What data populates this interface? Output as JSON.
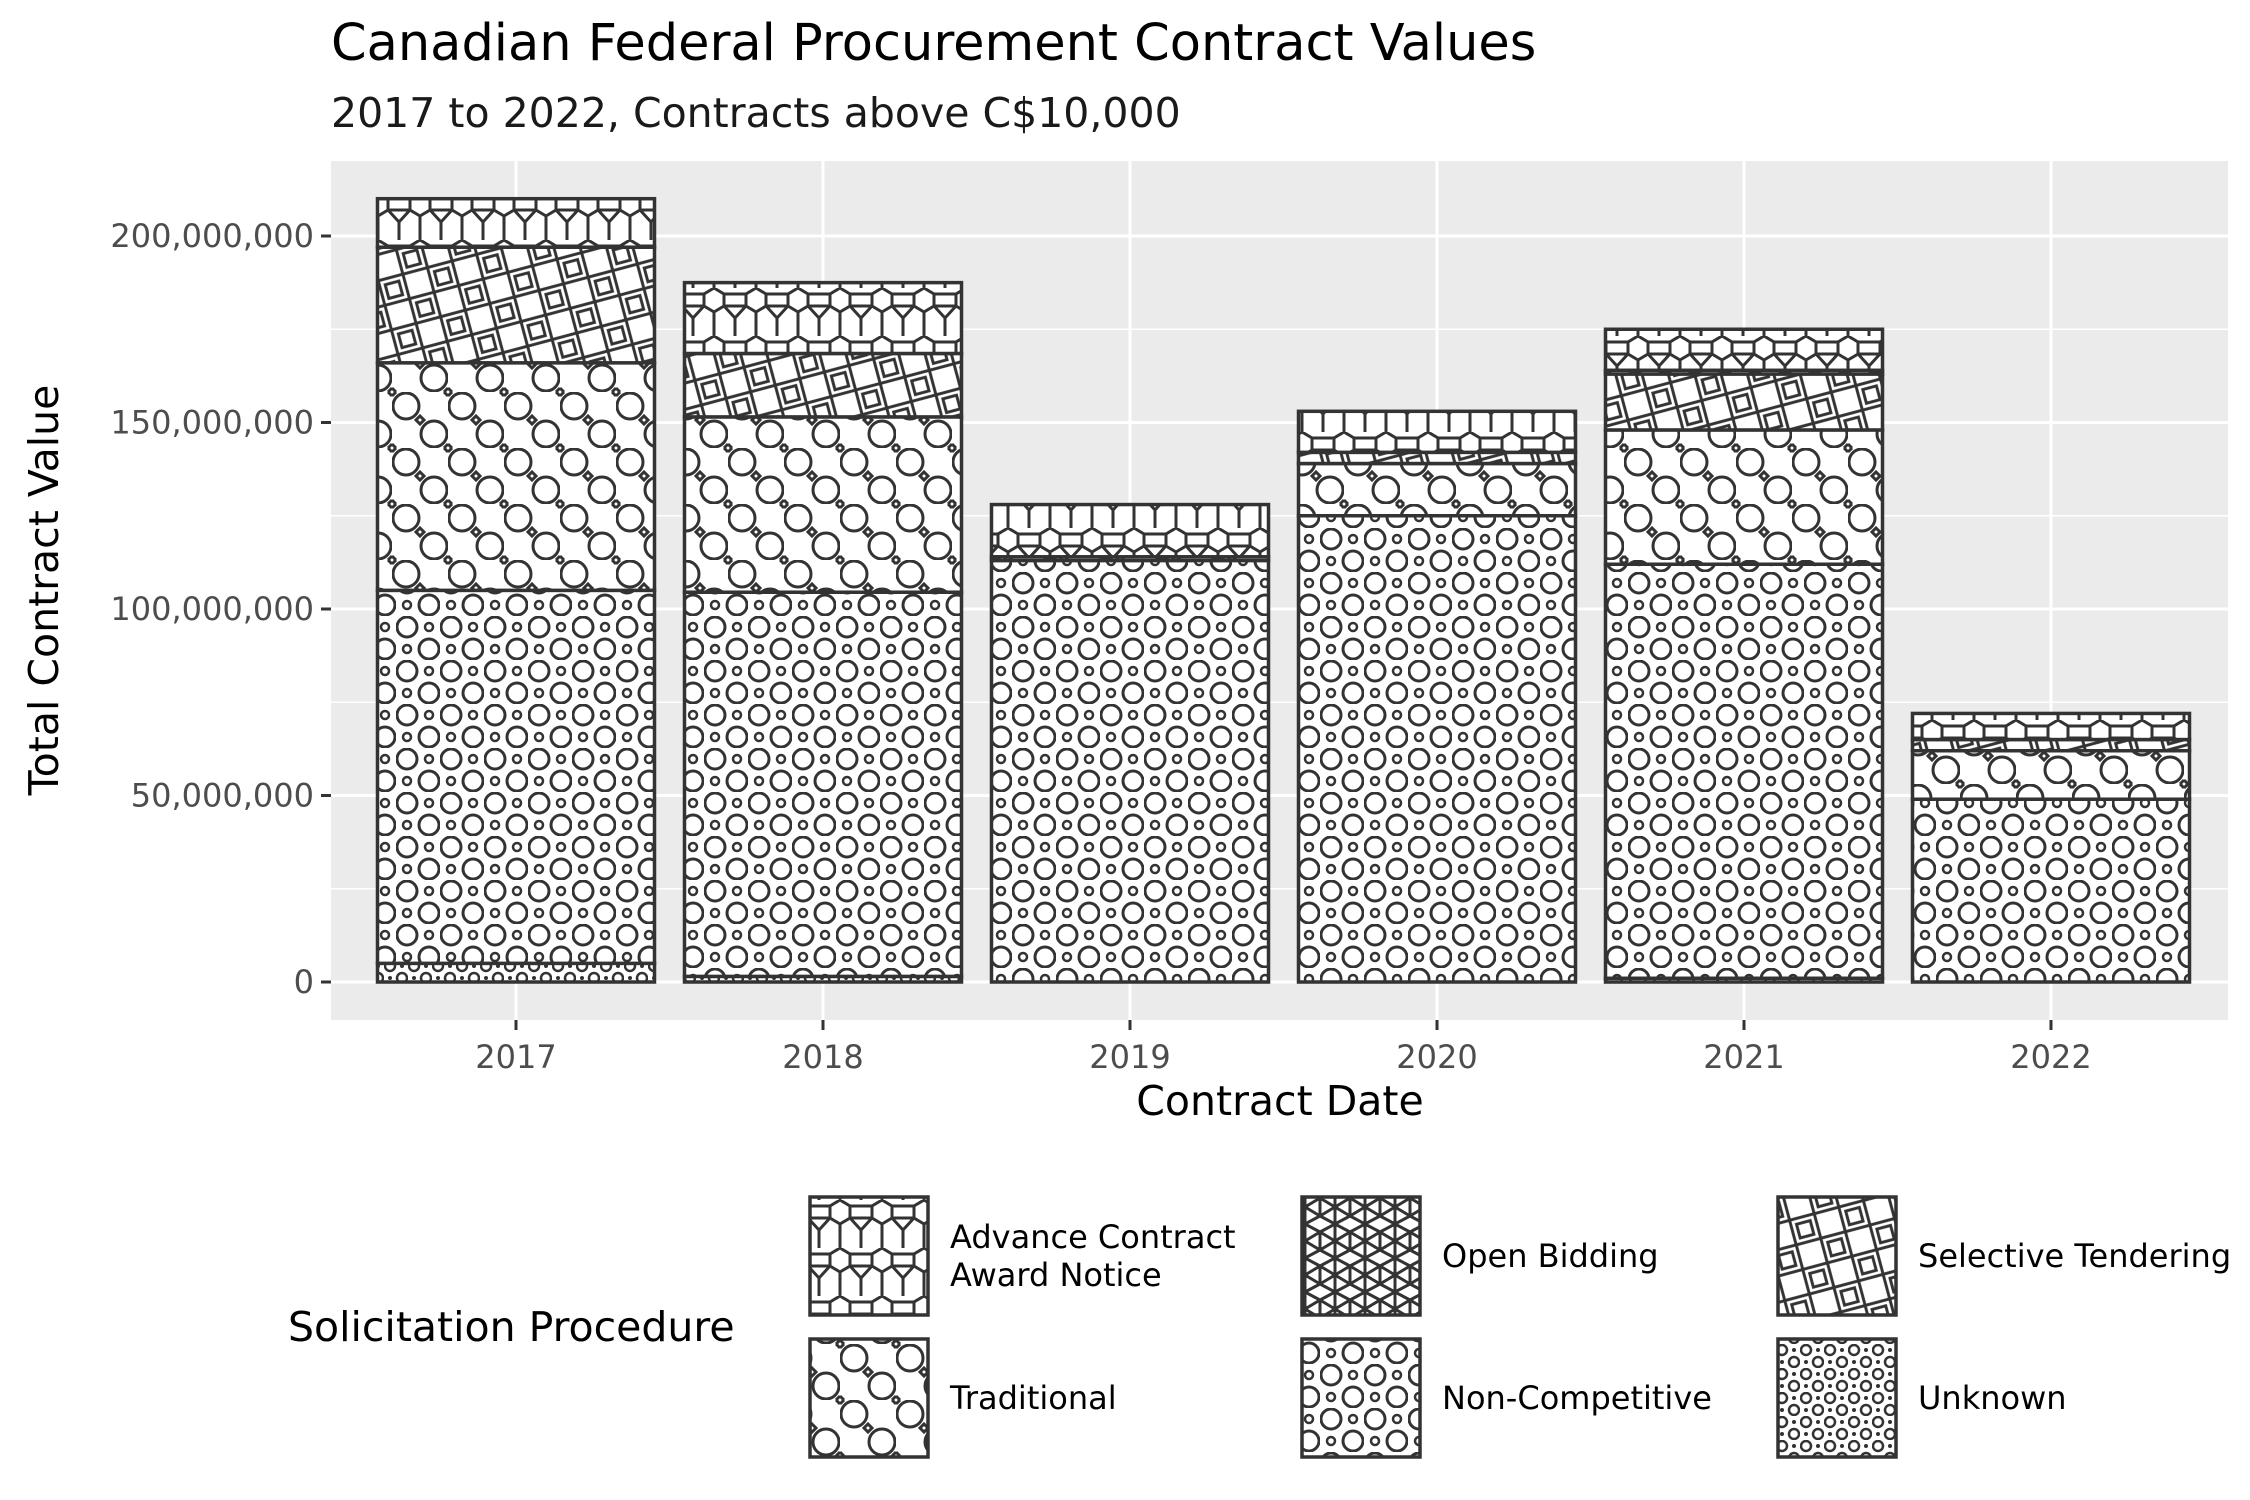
{
  "chart_data": {
    "type": "bar",
    "stacked": true,
    "title": "Canadian Federal Procurement Contract Values",
    "subtitle": "2017 to 2022, Contracts above C$10,000",
    "xlabel": "Contract Date",
    "ylabel": "Total Contract Value",
    "categories": [
      "2017",
      "2018",
      "2019",
      "2020",
      "2021",
      "2022"
    ],
    "ylim": [
      0,
      220000000
    ],
    "yticks": [
      0,
      50000000,
      100000000,
      150000000,
      200000000
    ],
    "ytick_labels": [
      "0",
      "50,000,000",
      "100,000,000",
      "150,000,000",
      "200,000,000"
    ],
    "grid": true,
    "legend": {
      "title": "Solicitation Procedure",
      "position": "bottom"
    },
    "series": [
      {
        "name": "Unknown",
        "pattern": "dense-dots",
        "values": [
          5000000,
          1500000,
          0,
          0,
          1000000,
          0
        ]
      },
      {
        "name": "Non-Competitive",
        "pattern": "dots",
        "values": [
          100000000,
          103000000,
          113000000,
          125000000,
          111000000,
          49000000
        ]
      },
      {
        "name": "Traditional",
        "pattern": "circles",
        "values": [
          61000000,
          47000000,
          1000000,
          14000000,
          36000000,
          13000000
        ]
      },
      {
        "name": "Selective Tendering",
        "pattern": "diamonds",
        "values": [
          31000000,
          17000000,
          0,
          3000000,
          15000000,
          3000000
        ]
      },
      {
        "name": "Open Bidding",
        "pattern": "hex-star",
        "values": [
          0,
          0,
          0,
          0,
          1000000,
          0
        ]
      },
      {
        "name": "Advance Contract Award Notice",
        "pattern": "hexagons",
        "values": [
          13000000,
          19000000,
          14000000,
          11000000,
          11000000,
          7000000
        ]
      }
    ],
    "legend_order": [
      {
        "series": "Advance Contract Award Notice",
        "label_lines": [
          "Advance Contract",
          "Award Notice"
        ]
      },
      {
        "series": "Open Bidding",
        "label_lines": [
          "Open Bidding"
        ]
      },
      {
        "series": "Selective Tendering",
        "label_lines": [
          "Selective Tendering"
        ]
      },
      {
        "series": "Traditional",
        "label_lines": [
          "Traditional"
        ]
      },
      {
        "series": "Non-Competitive",
        "label_lines": [
          "Non-Competitive"
        ]
      },
      {
        "series": "Unknown",
        "label_lines": [
          "Unknown"
        ]
      }
    ]
  },
  "colors": {
    "panel": "#ebebeb",
    "grid": "#ffffff",
    "outline": "#333333",
    "fill": "#ffffff"
  }
}
